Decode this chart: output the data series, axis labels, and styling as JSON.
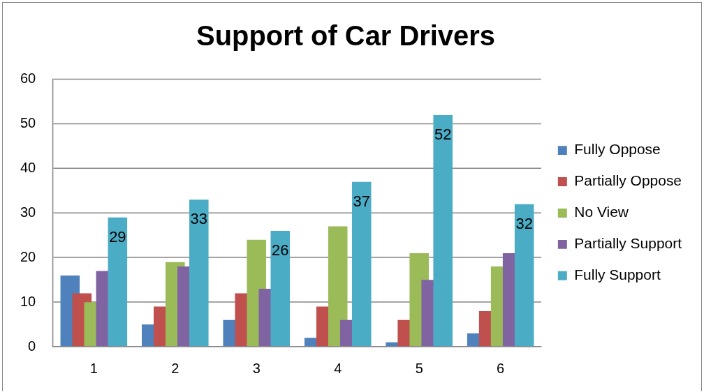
{
  "chart_data": {
    "type": "bar",
    "title": "Support of Car Drivers",
    "categories": [
      "1",
      "2",
      "3",
      "4",
      "5",
      "6"
    ],
    "series": [
      {
        "name": "Fully Oppose",
        "color": "#4f81bd",
        "values": [
          16,
          5,
          6,
          2,
          1,
          3
        ]
      },
      {
        "name": "Partially Oppose",
        "color": "#c0504d",
        "values": [
          12,
          9,
          12,
          9,
          6,
          8
        ]
      },
      {
        "name": "No View",
        "color": "#9bbb59",
        "values": [
          10,
          19,
          24,
          27,
          21,
          18
        ]
      },
      {
        "name": "Partially Support",
        "color": "#8064a2",
        "values": [
          17,
          18,
          13,
          6,
          15,
          21
        ]
      },
      {
        "name": "Fully Support",
        "color": "#4bacc6",
        "values": [
          29,
          33,
          26,
          37,
          52,
          32
        ],
        "value_labels": [
          "29",
          "33",
          "26",
          "37",
          "52",
          "32"
        ]
      }
    ],
    "ylim": [
      0,
      60
    ],
    "yticks": [
      0,
      10,
      20,
      30,
      40,
      50,
      60
    ],
    "grid": "y",
    "legend": "right"
  }
}
